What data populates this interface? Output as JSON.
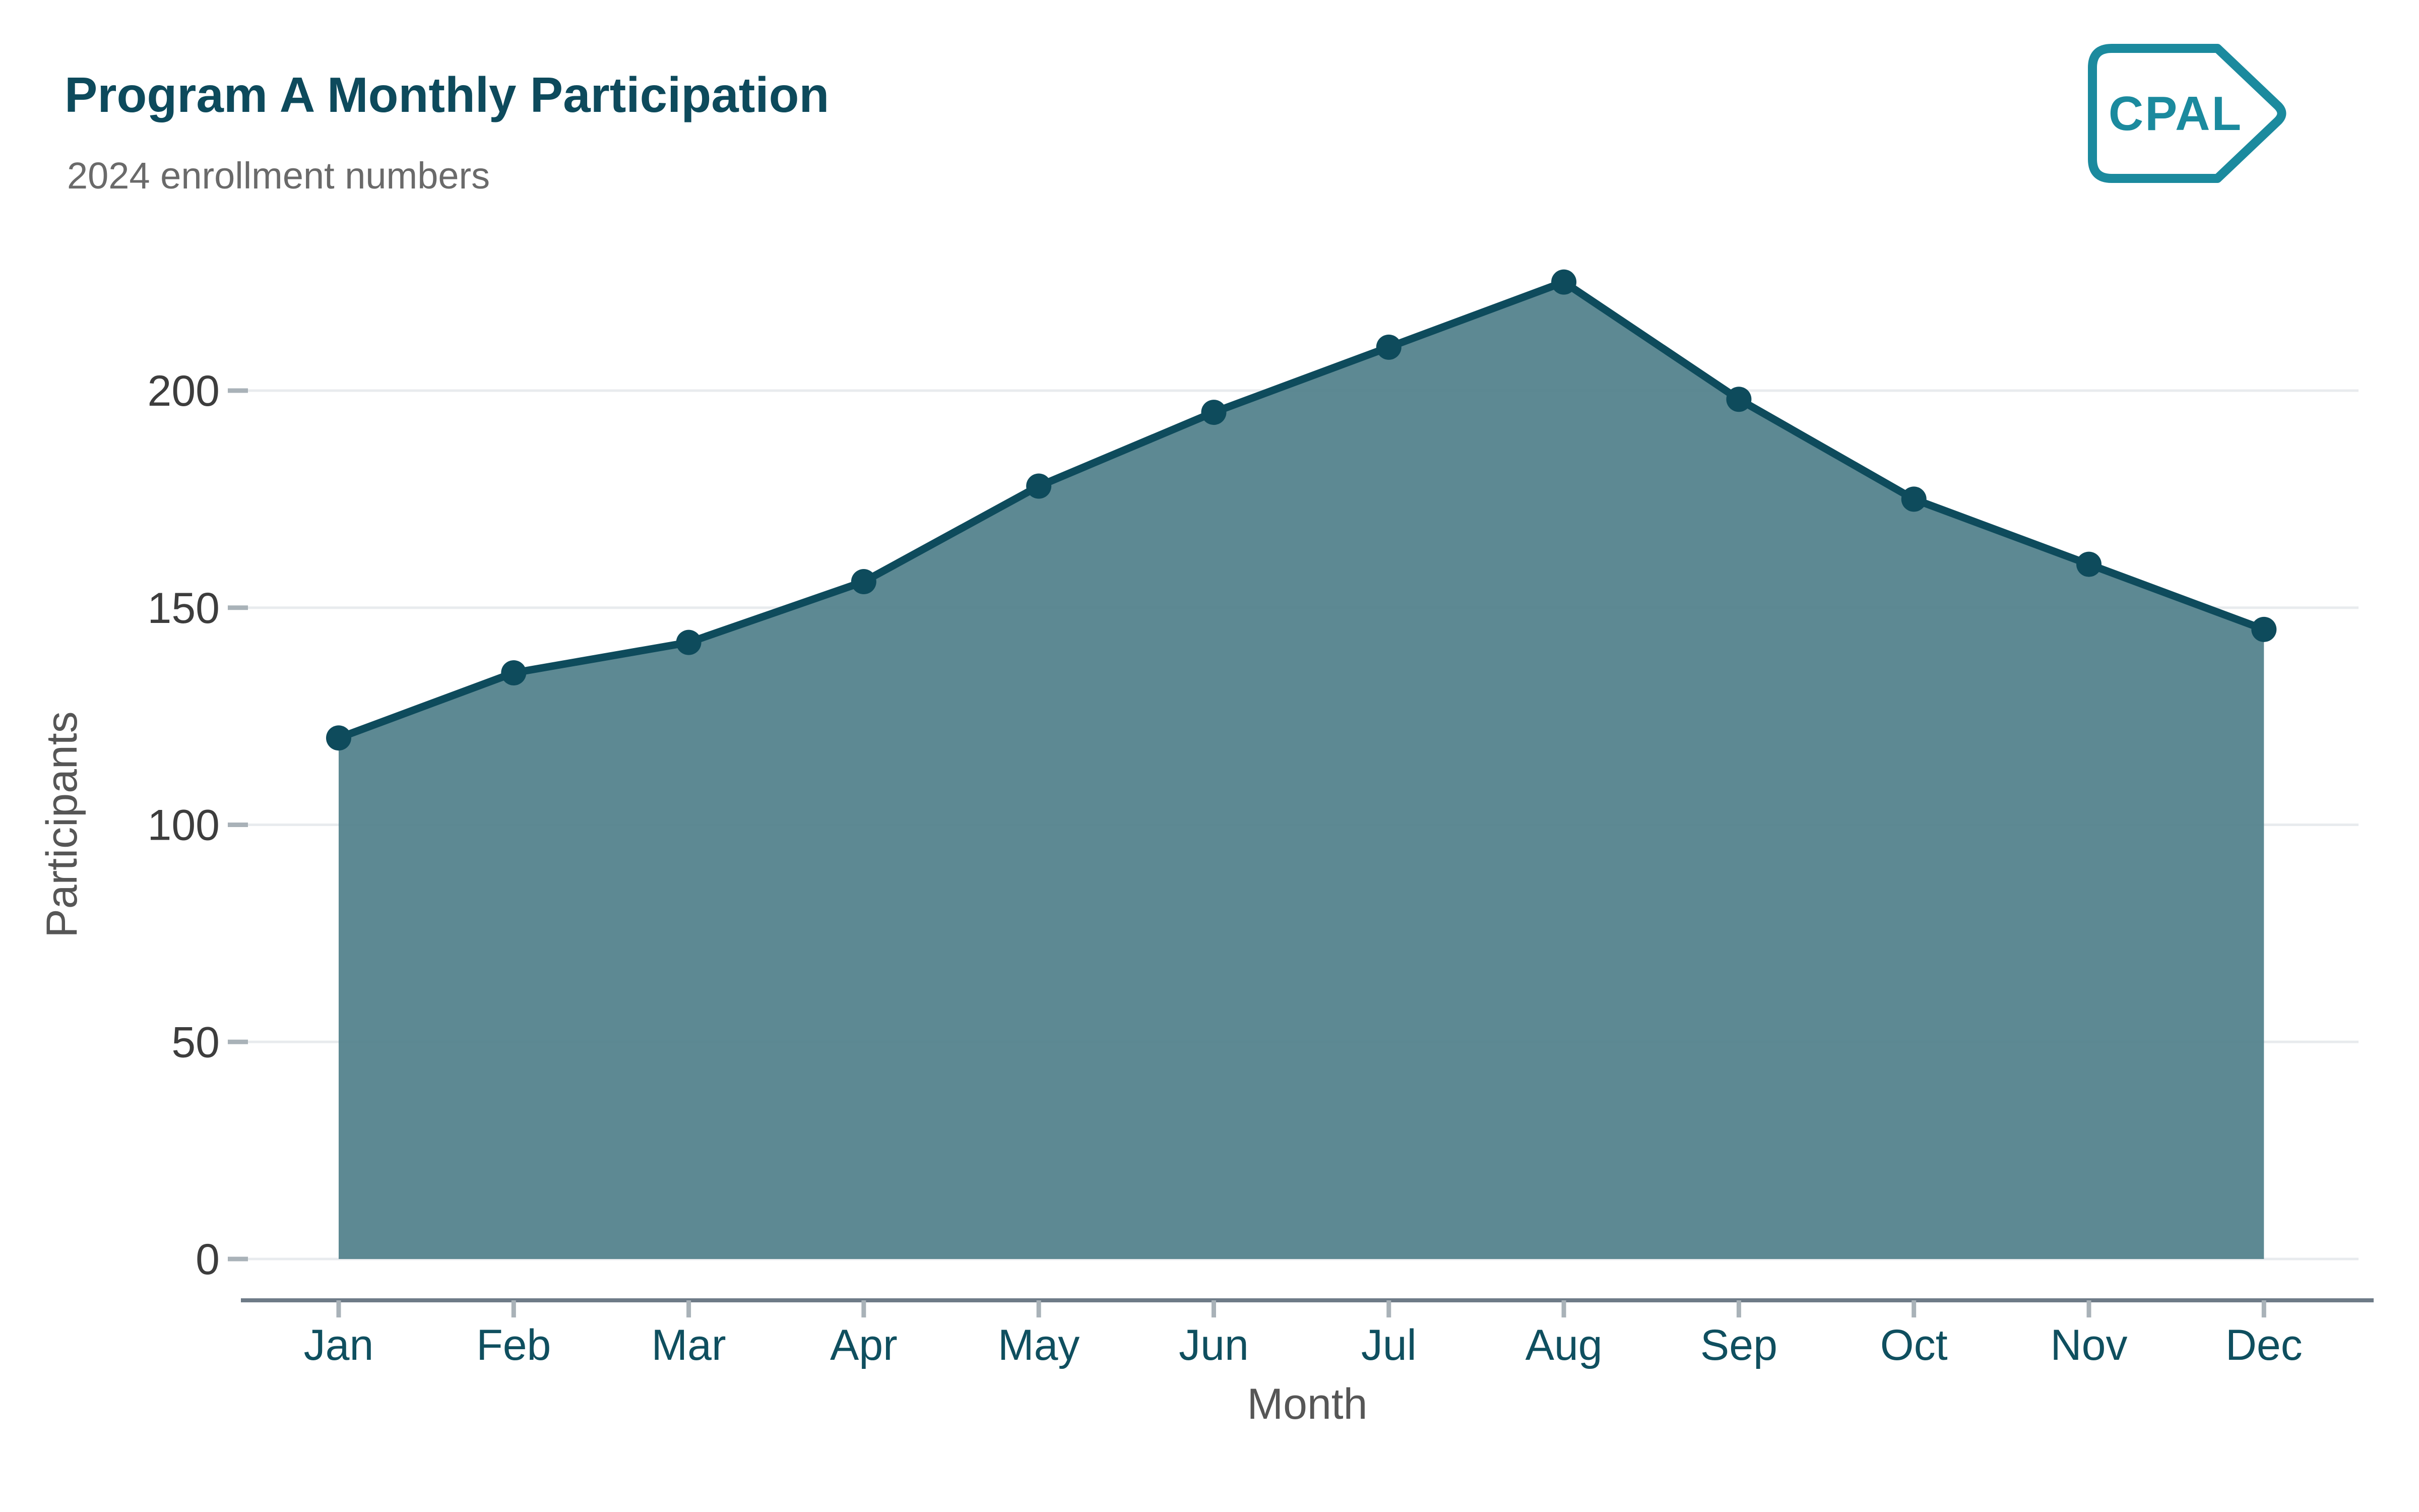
{
  "header": {
    "title": "Program A Monthly Participation",
    "subtitle": "2024 enrollment numbers"
  },
  "logo": {
    "text": "CPAL"
  },
  "chart_data": {
    "type": "area",
    "title": "Program A Monthly Participation",
    "subtitle": "2024 enrollment numbers",
    "x": [
      "Jan",
      "Feb",
      "Mar",
      "Apr",
      "May",
      "Jun",
      "Jul",
      "Aug",
      "Sep",
      "Oct",
      "Nov",
      "Dec"
    ],
    "series": [
      {
        "name": "Participants",
        "values": [
          120,
          135,
          142,
          156,
          178,
          195,
          210,
          225,
          198,
          175,
          160,
          145
        ]
      }
    ],
    "xlabel": "Month",
    "ylabel": "Participants",
    "ylim": [
      0,
      230
    ],
    "yticks": [
      0,
      50,
      100,
      150,
      200
    ],
    "grid": "horizontal-only",
    "legend": "none",
    "colors": {
      "area_fill": "#4f7f8a",
      "line": "#0e4b5c",
      "point": "#0e4b5c",
      "title": "#0d4a5c",
      "subtitle": "#6a6a6a",
      "axis_title": "#565656",
      "y_tick_label": "#3d3d3d",
      "x_tick_label": "#0f4f5f",
      "axis_line": "#6e7b87",
      "tick_mark": "#a9b2b8",
      "gridline": "#e8ebee",
      "logo": "#1b8a9e",
      "background": "#ffffff"
    }
  }
}
